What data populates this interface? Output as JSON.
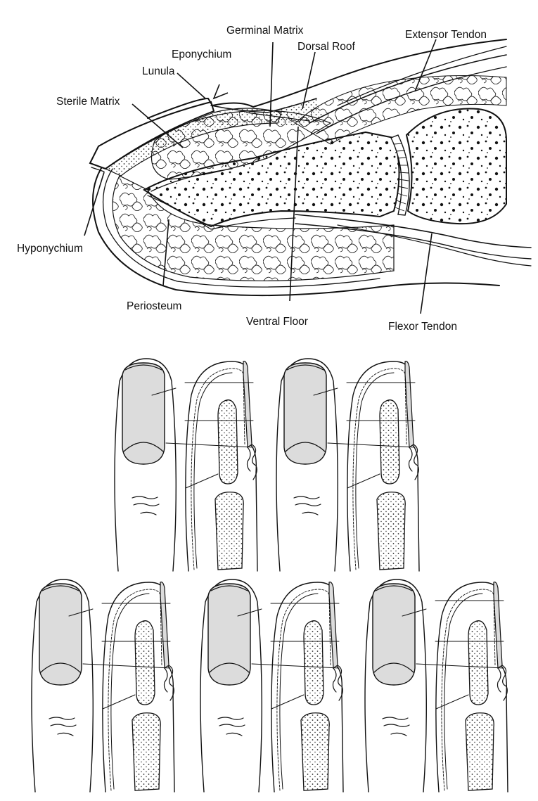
{
  "anatomy": {
    "labels": {
      "germinal_matrix": "Germinal Matrix",
      "extensor_tendon": "Extensor Tendon",
      "eponychium": "Eponychium",
      "dorsal_roof": "Dorsal Roof",
      "lunula": "Lunula",
      "sterile_matrix": "Sterile Matrix",
      "hyponychium": "Hyponychium",
      "periosteum": "Periosteum",
      "ventral_floor": "Ventral Floor",
      "flexor_tendon": "Flexor Tendon"
    }
  },
  "colors": {
    "ink": "#111111",
    "nail_fill": "#dcdcdc",
    "background": "#ffffff"
  },
  "finger_panels": 5
}
